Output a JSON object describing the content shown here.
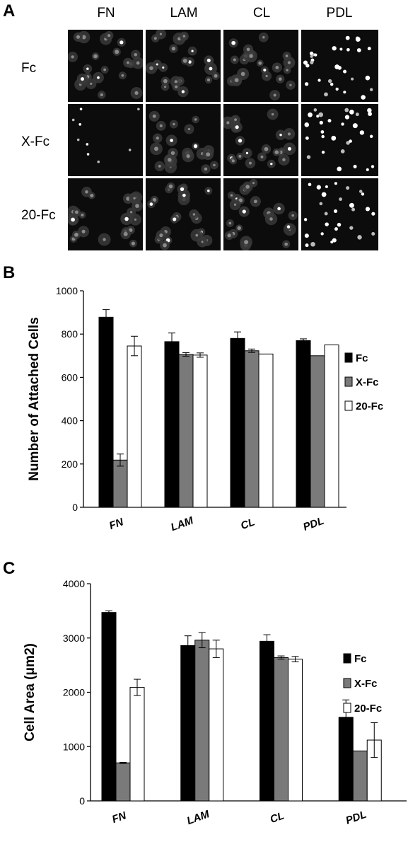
{
  "panels": {
    "a": {
      "letter": "A",
      "columns": [
        "FN",
        "LAM",
        "CL",
        "PDL"
      ],
      "rows": [
        "Fc",
        "X-Fc",
        "20-Fc"
      ]
    },
    "b": {
      "letter": "B"
    },
    "c": {
      "letter": "C"
    }
  },
  "colors": {
    "Fc": "#000000",
    "X-Fc": "#7a7a7a",
    "20-Fc": "#ffffff",
    "image_background": "#0c0c0c"
  },
  "chart_data": [
    {
      "type": "bar",
      "panel": "B",
      "categories": [
        "FN",
        "LAM",
        "CL",
        "PDL"
      ],
      "series": [
        {
          "name": "Fc",
          "values": [
            878,
            765,
            780,
            770
          ],
          "errors": [
            35,
            40,
            30,
            8
          ]
        },
        {
          "name": "X-Fc",
          "values": [
            218,
            706,
            723,
            700
          ],
          "errors": [
            28,
            8,
            8,
            0
          ]
        },
        {
          "name": "20-Fc",
          "values": [
            745,
            703,
            708,
            750
          ],
          "errors": [
            45,
            10,
            0,
            0
          ]
        }
      ],
      "ylabel": "Number of Attached Cells",
      "ylim": [
        0,
        1000
      ],
      "yticks": [
        "0",
        "200",
        "400",
        "600",
        "800",
        "1000"
      ],
      "legend_placement": "right"
    },
    {
      "type": "bar",
      "panel": "C",
      "categories": [
        "FN",
        "LAM",
        "CL",
        "PDL"
      ],
      "series": [
        {
          "name": "Fc",
          "values": [
            3470,
            2860,
            2940,
            1540
          ],
          "errors": [
            30,
            180,
            120,
            320
          ]
        },
        {
          "name": "X-Fc",
          "values": [
            700,
            2960,
            2640,
            920
          ],
          "errors": [
            10,
            140,
            30,
            0
          ]
        },
        {
          "name": "20-Fc",
          "values": [
            2090,
            2800,
            2610,
            1120
          ],
          "errors": [
            150,
            160,
            50,
            320
          ]
        }
      ],
      "ylabel": "Cell Area (μm2)",
      "ylim": [
        0,
        4000
      ],
      "yticks": [
        "0",
        "1000",
        "2000",
        "3000",
        "4000"
      ],
      "legend_placement": "right"
    }
  ]
}
